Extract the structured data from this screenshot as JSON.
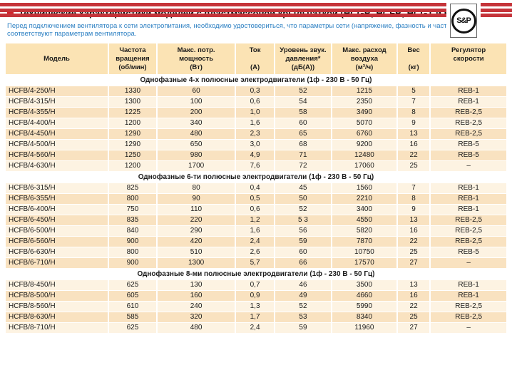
{
  "logo": {
    "text": "S&P"
  },
  "header": {
    "title": "Технические характеристики моделей с пластмассовой крыльчаткой (HCGB, HCFB, HCGT и HCFT)",
    "intro": "Перед подключением вентилятора к сети электропитания, необходимо удостовериться, что параметры сети (напряжение, фазность и частота) соответствуют параметрам вентилятора."
  },
  "colors": {
    "stripe_red": "#c5343a",
    "bullet_red": "#d2232a",
    "intro_blue": "#2b7fc2",
    "header_bg": "#fbe3b4",
    "row_dark": "#f9e2c0",
    "row_light": "#fdf3e2"
  },
  "table": {
    "columns": [
      {
        "name": "model",
        "lines": [
          "",
          "Модель",
          ""
        ]
      },
      {
        "name": "rpm",
        "lines": [
          "Частота",
          "вращения",
          "(об/мин)"
        ]
      },
      {
        "name": "power",
        "lines": [
          "Макс. потр.",
          "мощность",
          "(Вт)"
        ]
      },
      {
        "name": "current",
        "lines": [
          "Ток",
          "",
          "(А)"
        ]
      },
      {
        "name": "sound-level",
        "lines": [
          "Уровень звук.",
          "давления*",
          "(дБ(А))"
        ]
      },
      {
        "name": "airflow",
        "lines": [
          "Макс. расход",
          "воздуха",
          "(м³/ч)"
        ]
      },
      {
        "name": "weight",
        "lines": [
          "Вес",
          "",
          "(кг)"
        ]
      },
      {
        "name": "speed-regulator",
        "lines": [
          "Регулятор",
          "скорости",
          ""
        ]
      }
    ],
    "sections": [
      {
        "title": "Однофазные 4-х полюсные электродвигатели (1ф - 230 В - 50 Гц)",
        "first_row_shade": "dark",
        "rows": [
          [
            "HCFB/4-250/H",
            "1330",
            "60",
            "0,3",
            "52",
            "1215",
            "5",
            "REB-1"
          ],
          [
            "HCFB/4-315/H",
            "1300",
            "100",
            "0,6",
            "54",
            "2350",
            "7",
            "REB-1"
          ],
          [
            "HCFB/4-355/H",
            "1225",
            "200",
            "1,0",
            "58",
            "3490",
            "8",
            "REB-2,5"
          ],
          [
            "HCFB/4-400/H",
            "1200",
            "340",
            "1,6",
            "60",
            "5070",
            "9",
            "REB-2,5"
          ],
          [
            "HCFB/4-450/H",
            "1290",
            "480",
            "2,3",
            "65",
            "6760",
            "13",
            "REB-2,5"
          ],
          [
            "HCFB/4-500/H",
            "1290",
            "650",
            "3,0",
            "68",
            "9200",
            "16",
            "REB-5"
          ],
          [
            "HCFB/4-560/H",
            "1250",
            "980",
            "4,9",
            "71",
            "12480",
            "22",
            "REB-5"
          ],
          [
            "HCFB/4-630/H",
            "1200",
            "1700",
            "7,6",
            "72",
            "17060",
            "25",
            "–"
          ]
        ]
      },
      {
        "title": "Однофазные 6-ти полюсные электродвигатели (1ф - 230 В - 50 Гц)",
        "first_row_shade": "light",
        "rows": [
          [
            "HCFB/6-315/H",
            "825",
            "80",
            "0,4",
            "45",
            "1560",
            "7",
            "REB-1"
          ],
          [
            "HCFB/6-355/H",
            "800",
            "90",
            "0,5",
            "50",
            "2210",
            "8",
            "REB-1"
          ],
          [
            "HCFB/6-400/H",
            "750",
            "110",
            "0,6",
            "52",
            "3400",
            "9",
            "REB-1"
          ],
          [
            "HCFB/6-450/H",
            "835",
            "220",
            "1,2",
            "5 3",
            "4550",
            "13",
            "REB-2,5"
          ],
          [
            "HCFB/6-500/H",
            "840",
            "290",
            "1,6",
            "56",
            "5820",
            "16",
            "REB-2,5"
          ],
          [
            "HCFB/6-560/H",
            "900",
            "420",
            "2,4",
            "59",
            "7870",
            "22",
            "REB-2,5"
          ],
          [
            "HCFB/6-630/H",
            "800",
            "510",
            "2,6",
            "60",
            "10750",
            "25",
            "REB-5"
          ],
          [
            "HCFB/6-710/H",
            "900",
            "1300",
            "5,7",
            "66",
            "17570",
            "27",
            "–"
          ]
        ]
      },
      {
        "title": "Однофазные 8-ми полюсные электродвигатели (1ф - 230 В - 50 Гц)",
        "first_row_shade": "light",
        "rows": [
          [
            "HCFB/8-450/H",
            "625",
            "130",
            "0,7",
            "46",
            "3500",
            "13",
            "REB-1"
          ],
          [
            "HCFB/8-500/H",
            "605",
            "160",
            "0,9",
            "49",
            "4660",
            "16",
            "REB-1"
          ],
          [
            "HCFB/8-560/H",
            "610",
            "240",
            "1,3",
            "52",
            "5990",
            "22",
            "REB-2,5"
          ],
          [
            "HCFB/8-630/H",
            "585",
            "320",
            "1,7",
            "53",
            "8340",
            "25",
            "REB-2,5"
          ],
          [
            "HCFB/8-710/H",
            "625",
            "480",
            "2,4",
            "59",
            "11960",
            "27",
            "–"
          ]
        ]
      }
    ]
  }
}
